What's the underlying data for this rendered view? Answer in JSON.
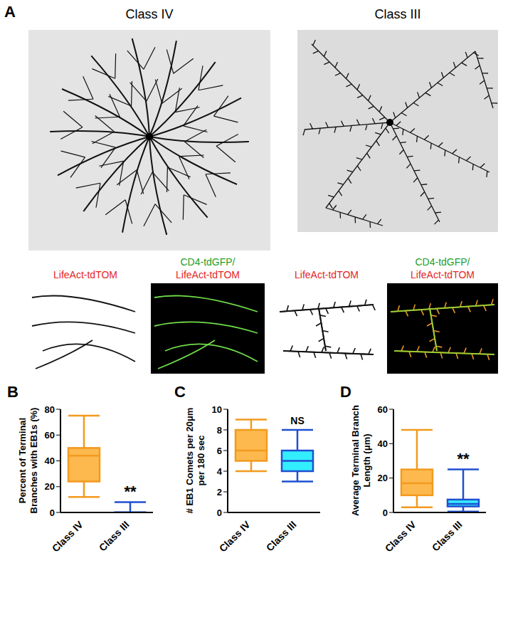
{
  "panel_a": {
    "label": "A",
    "images": [
      {
        "title": "Class IV",
        "single_label": "LifeAct-tdTOM",
        "merge_label": [
          "CD4-tdGFP/",
          "LifeAct-tdTOM"
        ]
      },
      {
        "title": "Class III",
        "single_label": "LifeAct-tdTOM",
        "merge_label": [
          "CD4-tdGFP/",
          "LifeAct-tdTOM"
        ]
      }
    ]
  },
  "chart_data": [
    {
      "type": "box",
      "panel_label": "B",
      "y_label": "Percent of Terminal Branches with EB1s (%)",
      "categories": [
        "Class IV",
        "Class III"
      ],
      "values": [
        {
          "min": 12,
          "q1": 24,
          "median": 44,
          "q3": 50,
          "max": 75
        },
        {
          "min": 0,
          "q1": 0,
          "median": 0,
          "q3": 0,
          "max": 8
        }
      ],
      "colors": [
        "#FDB94E",
        "#33EEFF"
      ],
      "annotations": [
        null,
        "**"
      ],
      "ylim": [
        0,
        80
      ],
      "yticks": [
        0,
        20,
        40,
        60,
        80
      ]
    },
    {
      "type": "box",
      "panel_label": "C",
      "y_label": "# EB1 Comets per 20μm per 180 sec",
      "categories": [
        "Class IV",
        "Class III"
      ],
      "values": [
        {
          "min": 4,
          "q1": 5,
          "median": 6,
          "q3": 8,
          "max": 9
        },
        {
          "min": 3,
          "q1": 4,
          "median": 5,
          "q3": 6,
          "max": 8
        }
      ],
      "colors": [
        "#FDB94E",
        "#33EEFF"
      ],
      "annotations": [
        null,
        "NS"
      ],
      "ylim": [
        0,
        10
      ],
      "yticks": [
        0,
        2,
        4,
        6,
        8,
        10
      ]
    },
    {
      "type": "box",
      "panel_label": "D",
      "y_label": "Average Terminal Branch Length (μm)",
      "categories": [
        "Class IV",
        "Class III"
      ],
      "values": [
        {
          "min": 3,
          "q1": 10,
          "median": 17,
          "q3": 25,
          "max": 48
        },
        {
          "min": 0.5,
          "q1": 3.5,
          "median": 5,
          "q3": 7.5,
          "max": 25
        }
      ],
      "colors": [
        "#FDB94E",
        "#33EEFF"
      ],
      "annotations": [
        null,
        "**"
      ],
      "ylim": [
        0,
        60
      ],
      "yticks": [
        0,
        20,
        40,
        60
      ]
    }
  ]
}
